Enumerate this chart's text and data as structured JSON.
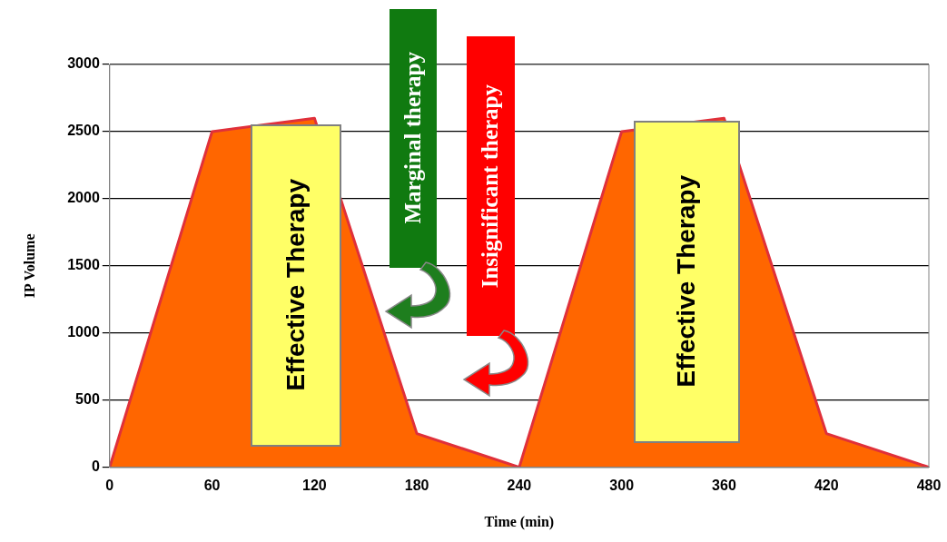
{
  "chart_data": {
    "type": "area",
    "xlabel": "Time (min)",
    "ylabel": "IP Volume",
    "x": [
      0,
      60,
      120,
      180,
      240,
      300,
      360,
      420,
      480
    ],
    "series": [
      {
        "color": "#ff6600",
        "values": [
          0,
          2500,
          2600,
          250,
          0,
          2500,
          2600,
          250,
          0
        ]
      }
    ],
    "xlim": [
      0,
      480
    ],
    "xticks": [
      0,
      60,
      120,
      180,
      240,
      300,
      360,
      420,
      480
    ],
    "ylim": [
      0,
      3000
    ],
    "yticks": [
      0,
      500,
      1000,
      1500,
      2000,
      2500,
      3000
    ],
    "grid": "y",
    "legend": false,
    "marker": "none",
    "line_style": "solid",
    "annotations": [
      "Effective Therapy",
      "Effective Therapy",
      "Marginal therapy",
      "Insignificant therapy"
    ]
  }
}
